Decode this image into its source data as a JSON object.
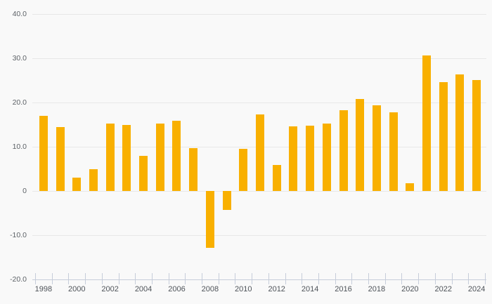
{
  "chart_data": {
    "type": "bar",
    "title": "",
    "xlabel": "",
    "ylabel": "",
    "categories": [
      "1998",
      "1999",
      "2000",
      "2001",
      "2002",
      "2003",
      "2004",
      "2005",
      "2006",
      "2007",
      "2008",
      "2009",
      "2010",
      "2011",
      "2012",
      "2013",
      "2014",
      "2015",
      "2016",
      "2017",
      "2018",
      "2019",
      "2020",
      "2021",
      "2022",
      "2023",
      "2024"
    ],
    "values": [
      17.0,
      14.5,
      3.0,
      5.0,
      15.3,
      14.9,
      7.9,
      15.2,
      15.9,
      9.7,
      -12.9,
      -4.3,
      9.6,
      17.3,
      5.9,
      14.6,
      14.8,
      15.3,
      18.3,
      20.8,
      19.4,
      17.8,
      1.8,
      30.7,
      24.6,
      26.3,
      25.1
    ],
    "ylim": [
      -20,
      40
    ],
    "y_ticks": [
      40,
      30,
      20,
      10,
      0,
      -10,
      -20
    ],
    "y_tick_labels": [
      "40.0",
      "30.0",
      "20.0",
      "10.0",
      "0",
      "-10.0",
      "-20.0"
    ],
    "x_tick_labels": [
      "1998",
      "2000",
      "2002",
      "2004",
      "2006",
      "2008",
      "2010",
      "2012",
      "2014",
      "2016",
      "2018",
      "2020",
      "2022",
      "2024"
    ],
    "grid": "horizontal",
    "legend": "none"
  },
  "colors": {
    "background": "#f9f9f9",
    "bar": "#f9b000",
    "gridline": "#e8e8e8",
    "axis": "#c6cdda",
    "y_label": "#5c6166",
    "x_label": "#4e5359"
  }
}
